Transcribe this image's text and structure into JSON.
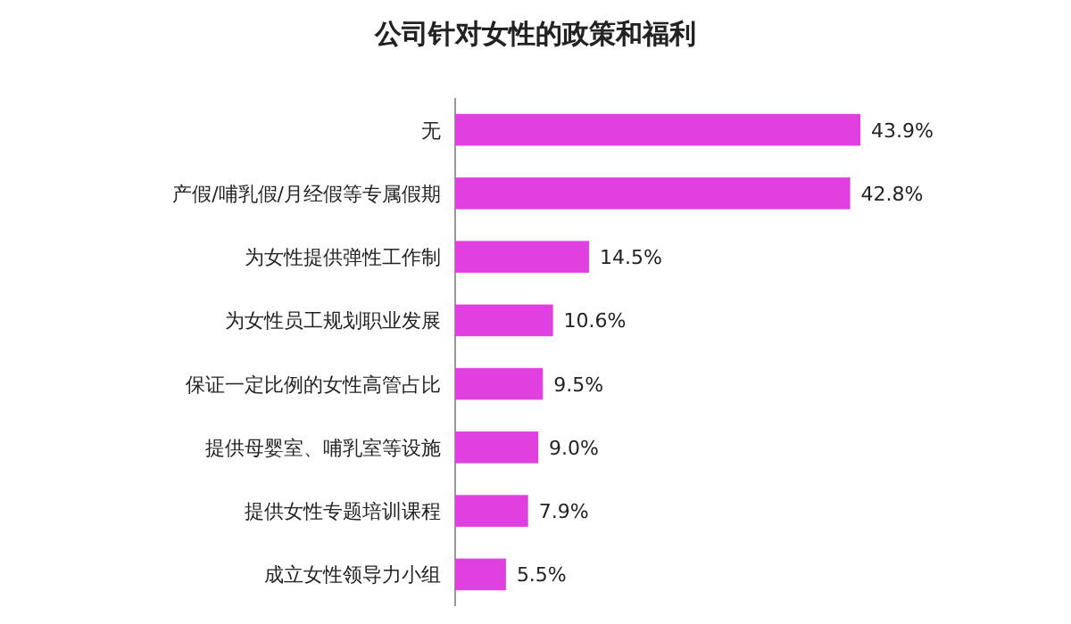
{
  "chart_data": {
    "type": "bar",
    "orientation": "horizontal",
    "title": "公司针对女性的政策和福利",
    "categories": [
      "无",
      "产假/哺乳假/月经假等专属假期",
      "为女性提供弹性工作制",
      "为女性员工规划职业发展",
      "保证一定比例的女性高管占比",
      "提供母婴室、哺乳室等设施",
      "提供女性专题培训课程",
      "成立女性领导力小组"
    ],
    "values": [
      43.9,
      42.8,
      14.5,
      10.6,
      9.5,
      9.0,
      7.9,
      5.5
    ],
    "value_labels": [
      "43.9%",
      "42.8%",
      "14.5%",
      "10.6%",
      "9.5%",
      "9.0%",
      "7.9%",
      "5.5%"
    ],
    "color": "#e040e0"
  }
}
